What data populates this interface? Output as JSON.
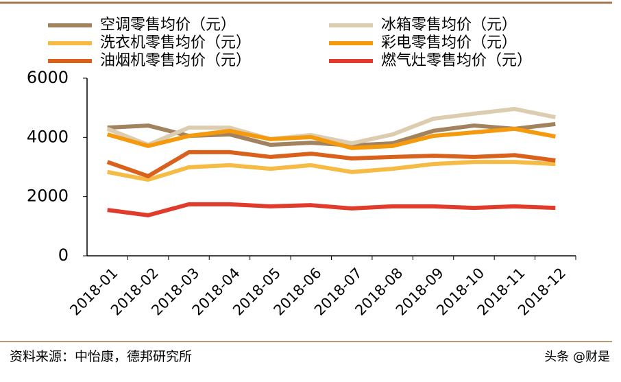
{
  "chart_data": {
    "type": "line",
    "categories": [
      "2018-01",
      "2018-02",
      "2018-03",
      "2018-04",
      "2018-05",
      "2018-06",
      "2018-07",
      "2018-08",
      "2018-09",
      "2018-10",
      "2018-11",
      "2018-12"
    ],
    "series": [
      {
        "name": "空调零售均价（元）",
        "color": "#a3835f",
        "values": [
          4330,
          4400,
          4050,
          4100,
          3750,
          3820,
          3730,
          3800,
          4220,
          4400,
          4290,
          4450
        ]
      },
      {
        "name": "冰箱零售均价（元）",
        "color": "#dccdb1",
        "values": [
          4290,
          3750,
          4330,
          4330,
          3940,
          4080,
          3800,
          4100,
          4630,
          4800,
          4960,
          4680
        ]
      },
      {
        "name": "洗衣机零售均价（元）",
        "color": "#f5bb45",
        "values": [
          2830,
          2570,
          2990,
          3060,
          2940,
          3060,
          2830,
          2940,
          3100,
          3170,
          3170,
          3100
        ]
      },
      {
        "name": "彩电零售均价（元）",
        "color": "#f59a0c",
        "values": [
          4100,
          3710,
          4050,
          4220,
          3940,
          4010,
          3640,
          3710,
          4050,
          4170,
          4290,
          4030
        ]
      },
      {
        "name": "油烟机零售均价（元）",
        "color": "#d9611c",
        "values": [
          3170,
          2690,
          3500,
          3500,
          3340,
          3450,
          3290,
          3340,
          3380,
          3340,
          3400,
          3220
        ]
      },
      {
        "name": "燃气灶零售均价（元）",
        "color": "#e03b2b",
        "values": [
          1550,
          1370,
          1740,
          1740,
          1670,
          1710,
          1600,
          1670,
          1670,
          1620,
          1670,
          1620
        ]
      }
    ],
    "ylim": [
      0,
      6000
    ],
    "yticks": [
      0,
      2000,
      4000,
      6000
    ],
    "grid": false
  },
  "source": "资料来源：中怡康，德邦研究所",
  "watermark": "头条 @财是"
}
